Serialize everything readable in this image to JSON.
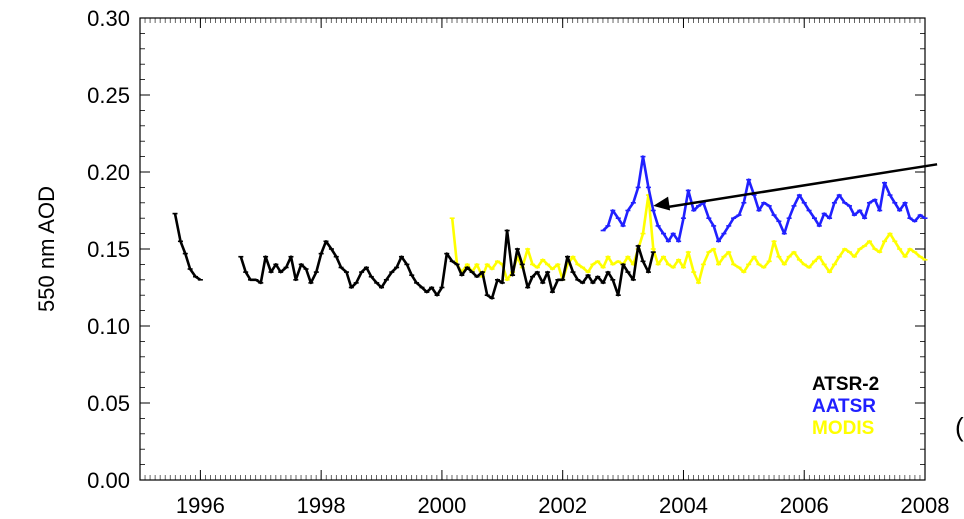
{
  "chart_data": {
    "type": "line",
    "title": "",
    "xlabel": "",
    "ylabel": "550 nm AOD",
    "xlim": [
      1995.0,
      2008.0
    ],
    "ylim": [
      0.0,
      0.3
    ],
    "x_ticks": [
      1996,
      1998,
      2000,
      2002,
      2004,
      2006,
      2008
    ],
    "x_tick_labels": [
      "1996",
      "1998",
      "2000",
      "2002",
      "2004",
      "2006",
      "2008"
    ],
    "y_ticks": [
      0.0,
      0.05,
      0.1,
      0.15,
      0.2,
      0.25,
      0.3
    ],
    "y_tick_labels": [
      "0.00",
      "0.05",
      "0.10",
      "0.15",
      "0.20",
      "0.25",
      "0.30"
    ],
    "grid": false,
    "legend_position": "bottom-right",
    "series": [
      {
        "name": "MODIS",
        "color": "#ffff00",
        "x": [
          2000.17,
          2000.25,
          2000.33,
          2000.42,
          2000.5,
          2000.58,
          2000.67,
          2000.75,
          2000.83,
          2000.92,
          2001.0,
          2001.08,
          2001.17,
          2001.25,
          2001.33,
          2001.42,
          2001.5,
          2001.58,
          2001.67,
          2001.75,
          2001.83,
          2001.92,
          2002.0,
          2002.08,
          2002.17,
          2002.25,
          2002.33,
          2002.42,
          2002.5,
          2002.58,
          2002.67,
          2002.75,
          2002.83,
          2002.92,
          2003.0,
          2003.08,
          2003.17,
          2003.25,
          2003.33,
          2003.42,
          2003.5,
          2003.58,
          2003.67,
          2003.75,
          2003.83,
          2003.92,
          2004.0,
          2004.08,
          2004.17,
          2004.25,
          2004.33,
          2004.42,
          2004.5,
          2004.58,
          2004.67,
          2004.75,
          2004.83,
          2004.92,
          2005.0,
          2005.08,
          2005.17,
          2005.25,
          2005.33,
          2005.42,
          2005.5,
          2005.58,
          2005.67,
          2005.75,
          2005.83,
          2005.92,
          2006.0,
          2006.08,
          2006.17,
          2006.25,
          2006.33,
          2006.42,
          2006.5,
          2006.58,
          2006.67,
          2006.75,
          2006.83,
          2006.92,
          2007.0,
          2007.08,
          2007.17,
          2007.25,
          2007.33,
          2007.42,
          2007.5,
          2007.58,
          2007.67,
          2007.75,
          2007.83,
          2007.92,
          2008.0
        ],
        "y": [
          0.17,
          0.14,
          0.135,
          0.14,
          0.135,
          0.14,
          0.132,
          0.14,
          0.137,
          0.142,
          0.14,
          0.13,
          0.135,
          0.145,
          0.138,
          0.15,
          0.14,
          0.138,
          0.143,
          0.14,
          0.137,
          0.14,
          0.13,
          0.14,
          0.145,
          0.14,
          0.138,
          0.135,
          0.14,
          0.142,
          0.138,
          0.145,
          0.14,
          0.142,
          0.14,
          0.145,
          0.14,
          0.15,
          0.16,
          0.185,
          0.15,
          0.14,
          0.145,
          0.14,
          0.138,
          0.143,
          0.138,
          0.148,
          0.135,
          0.128,
          0.14,
          0.148,
          0.15,
          0.14,
          0.145,
          0.148,
          0.14,
          0.138,
          0.135,
          0.14,
          0.145,
          0.14,
          0.138,
          0.142,
          0.155,
          0.145,
          0.14,
          0.145,
          0.148,
          0.143,
          0.14,
          0.138,
          0.142,
          0.145,
          0.14,
          0.135,
          0.14,
          0.145,
          0.15,
          0.148,
          0.145,
          0.15,
          0.152,
          0.155,
          0.15,
          0.148,
          0.155,
          0.16,
          0.155,
          0.15,
          0.145,
          0.15,
          0.148,
          0.145,
          0.143
        ]
      },
      {
        "name": "ATSR-2",
        "color": "#000000",
        "x": [
          1995.58,
          1995.67,
          1995.75,
          1995.83,
          1995.92,
          1996.0,
          1996.67,
          1996.75,
          1996.83,
          1996.92,
          1997.0,
          1997.08,
          1997.17,
          1997.25,
          1997.33,
          1997.42,
          1997.5,
          1997.58,
          1997.67,
          1997.75,
          1997.83,
          1997.92,
          1998.0,
          1998.08,
          1998.17,
          1998.25,
          1998.33,
          1998.42,
          1998.5,
          1998.58,
          1998.67,
          1998.75,
          1998.83,
          1998.92,
          1999.0,
          1999.08,
          1999.17,
          1999.25,
          1999.33,
          1999.42,
          1999.5,
          1999.58,
          1999.67,
          1999.75,
          1999.83,
          1999.92,
          2000.0,
          2000.08,
          2000.17,
          2000.25,
          2000.33,
          2000.42,
          2000.5,
          2000.58,
          2000.67,
          2000.75,
          2000.83,
          2000.92,
          2001.0,
          2001.08,
          2001.17,
          2001.25,
          2001.33,
          2001.42,
          2001.5,
          2001.58,
          2001.67,
          2001.75,
          2001.83,
          2001.92,
          2002.0,
          2002.08,
          2002.17,
          2002.25,
          2002.33,
          2002.42,
          2002.5,
          2002.58,
          2002.67,
          2002.75,
          2002.83,
          2002.92,
          2003.0,
          2003.08,
          2003.17,
          2003.25,
          2003.33,
          2003.42,
          2003.5
        ],
        "y": [
          0.173,
          0.155,
          0.147,
          0.137,
          0.132,
          0.13,
          0.145,
          0.135,
          0.13,
          0.13,
          0.128,
          0.145,
          0.135,
          0.14,
          0.135,
          0.138,
          0.145,
          0.13,
          0.14,
          0.137,
          0.128,
          0.135,
          0.147,
          0.155,
          0.15,
          0.145,
          0.138,
          0.135,
          0.125,
          0.128,
          0.135,
          0.138,
          0.132,
          0.128,
          0.125,
          0.13,
          0.135,
          0.138,
          0.145,
          0.14,
          0.133,
          0.128,
          0.125,
          0.122,
          0.125,
          0.12,
          0.125,
          0.147,
          0.142,
          0.14,
          0.133,
          0.138,
          0.135,
          0.132,
          0.135,
          0.12,
          0.118,
          0.13,
          0.128,
          0.162,
          0.133,
          0.15,
          0.14,
          0.125,
          0.132,
          0.135,
          0.128,
          0.135,
          0.122,
          0.13,
          0.13,
          0.145,
          0.135,
          0.13,
          0.128,
          0.133,
          0.128,
          0.132,
          0.128,
          0.135,
          0.13,
          0.12,
          0.14,
          0.135,
          0.13,
          0.152,
          0.142,
          0.135,
          0.148
        ]
      },
      {
        "name": "AATSR",
        "color": "#2020ff",
        "x": [
          2002.67,
          2002.75,
          2002.83,
          2002.92,
          2003.0,
          2003.08,
          2003.17,
          2003.25,
          2003.33,
          2003.42,
          2003.5,
          2003.58,
          2003.67,
          2003.75,
          2003.83,
          2003.92,
          2004.0,
          2004.08,
          2004.17,
          2004.25,
          2004.33,
          2004.42,
          2004.5,
          2004.58,
          2004.67,
          2004.75,
          2004.83,
          2004.92,
          2005.0,
          2005.08,
          2005.17,
          2005.25,
          2005.33,
          2005.42,
          2005.5,
          2005.58,
          2005.67,
          2005.75,
          2005.83,
          2005.92,
          2006.0,
          2006.08,
          2006.17,
          2006.25,
          2006.33,
          2006.42,
          2006.5,
          2006.58,
          2006.67,
          2006.75,
          2006.83,
          2006.92,
          2007.0,
          2007.08,
          2007.17,
          2007.25,
          2007.33,
          2007.42,
          2007.5,
          2007.58,
          2007.67,
          2007.75,
          2007.83,
          2007.92,
          2008.0
        ],
        "y": [
          0.162,
          0.165,
          0.175,
          0.17,
          0.165,
          0.175,
          0.18,
          0.19,
          0.21,
          0.19,
          0.175,
          0.165,
          0.16,
          0.155,
          0.16,
          0.155,
          0.17,
          0.188,
          0.175,
          0.178,
          0.18,
          0.17,
          0.165,
          0.155,
          0.16,
          0.165,
          0.17,
          0.172,
          0.18,
          0.195,
          0.185,
          0.175,
          0.18,
          0.178,
          0.172,
          0.168,
          0.16,
          0.17,
          0.178,
          0.185,
          0.18,
          0.175,
          0.17,
          0.165,
          0.173,
          0.17,
          0.18,
          0.185,
          0.18,
          0.178,
          0.172,
          0.175,
          0.17,
          0.18,
          0.182,
          0.175,
          0.193,
          0.185,
          0.18,
          0.175,
          0.18,
          0.17,
          0.168,
          0.172,
          0.17
        ]
      }
    ],
    "legend_entries": [
      "ATSR-2",
      "AATSR",
      "MODIS"
    ],
    "annotations": [
      {
        "type": "arrow",
        "from": [
          2008.2,
          0.205
        ],
        "to": [
          2003.5,
          0.178
        ]
      }
    ]
  },
  "stray_glyph": "("
}
